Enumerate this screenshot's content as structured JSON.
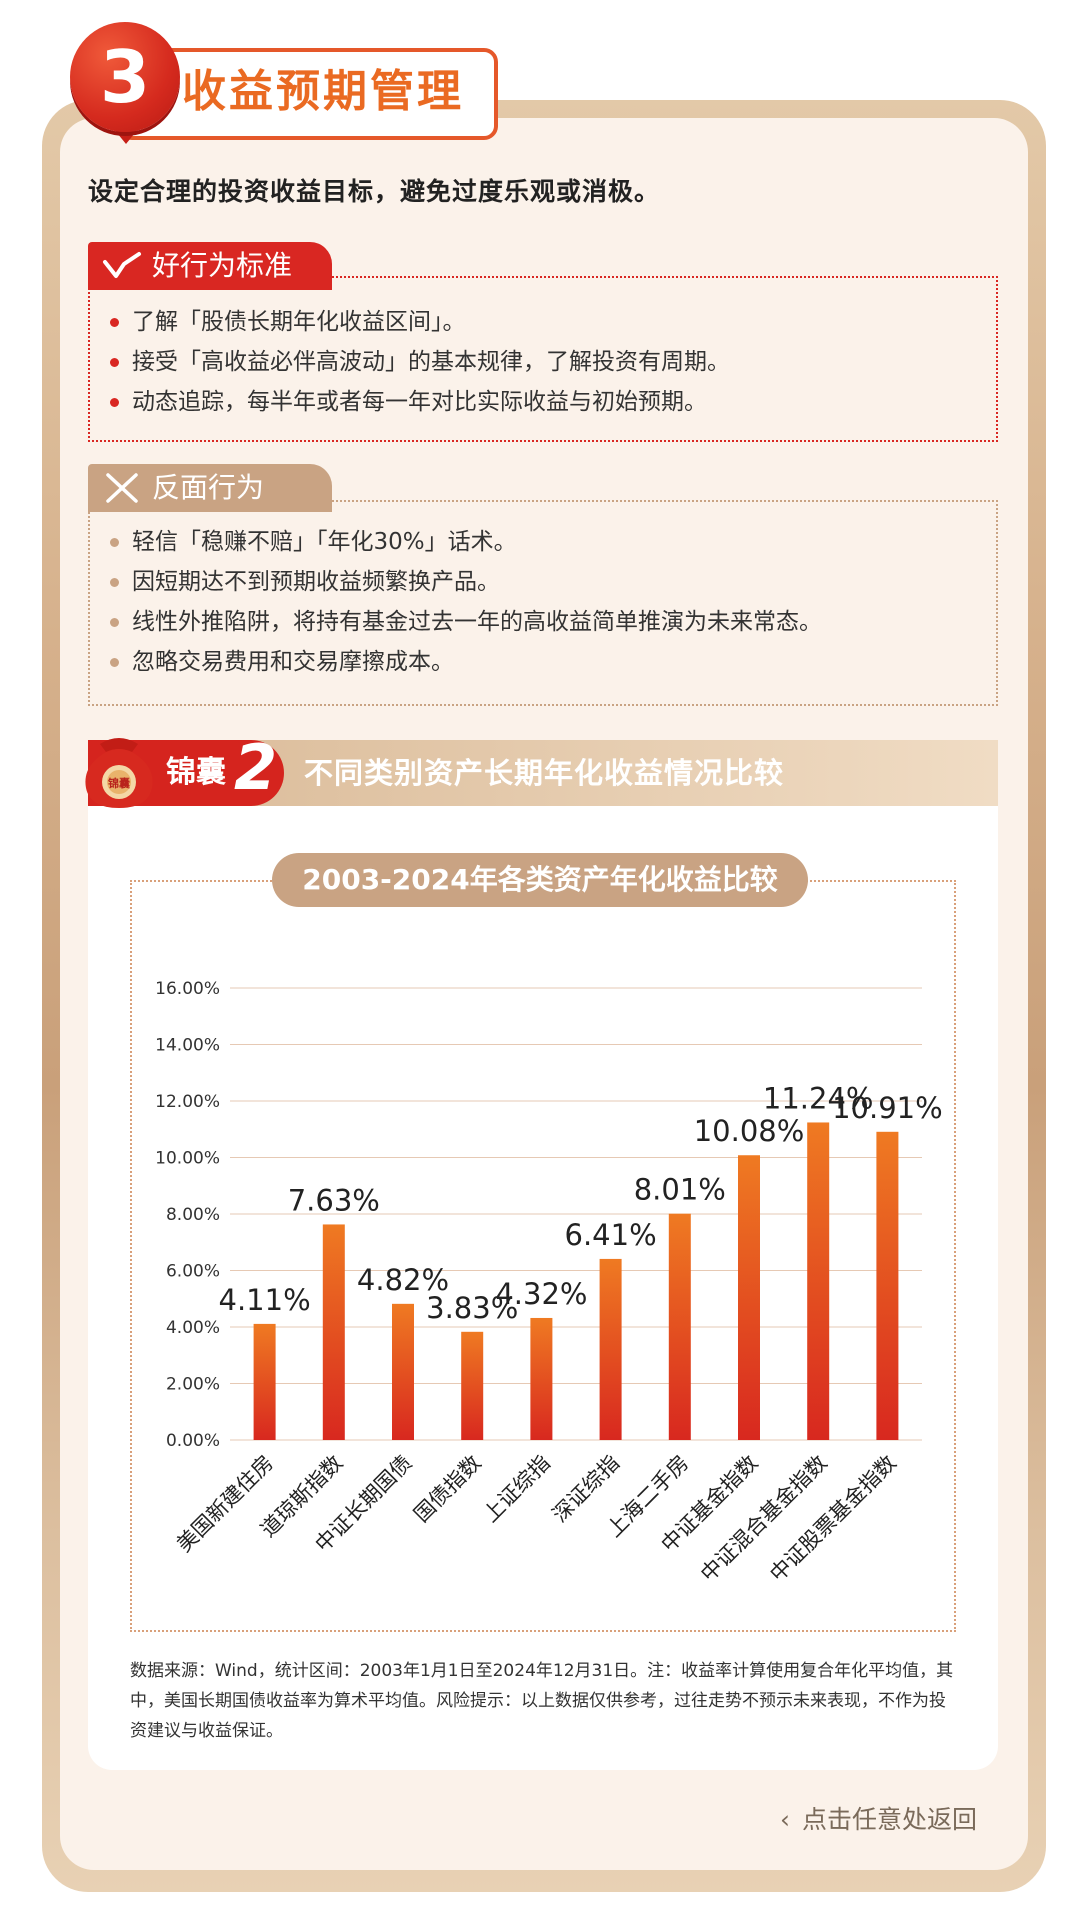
{
  "header": {
    "number": "3",
    "title": "收益预期管理"
  },
  "intro": "设定合理的投资收益目标，避免过度乐观或消极。",
  "good_behavior": {
    "label": "好行为标准",
    "icon": "check-icon",
    "items": [
      "了解「股债长期年化收益区间」。",
      "接受「高收益必伴高波动」的基本规律，了解投资有周期。",
      "动态追踪，每半年或者每一年对比实际收益与初始预期。"
    ]
  },
  "bad_behavior": {
    "label": "反面行为",
    "icon": "cross-icon",
    "items": [
      "轻信「稳赚不赔」「年化30%」话术。",
      "因短期达不到预期收益频繁换产品。",
      "线性外推陷阱，将持有基金过去一年的高收益简单推演为未来常态。",
      "忽略交易费用和交易摩擦成本。"
    ]
  },
  "tips": {
    "bag_text": "锦囊",
    "label": "锦囊",
    "number": "2",
    "title": "不同类别资产长期年化收益情况比较"
  },
  "chart_data": {
    "type": "bar",
    "title": "2003-2024年各类资产年化收益比较",
    "categories": [
      "美国新建住房",
      "道琼斯指数",
      "中证长期国债",
      "国债指数",
      "上证综指",
      "深证综指",
      "上海二手房",
      "中证基金指数",
      "中证混合基金指数",
      "中证股票基金指数"
    ],
    "values": [
      4.11,
      7.63,
      4.82,
      3.83,
      4.32,
      6.41,
      8.01,
      10.08,
      11.24,
      10.91
    ],
    "value_labels": [
      "4.11%",
      "7.63%",
      "4.82%",
      "3.83%",
      "4.32%",
      "6.41%",
      "8.01%",
      "10.08%",
      "11.24%",
      "10.91%"
    ],
    "y_ticks": [
      "0.00%",
      "2.00%",
      "4.00%",
      "6.00%",
      "8.00%",
      "10.00%",
      "12.00%",
      "14.00%",
      "16.00%"
    ],
    "ylim": [
      0,
      16
    ],
    "grid": true,
    "bar_color_top": "#ef7a22",
    "bar_color_bottom": "#d8281f"
  },
  "source_note": "数据来源：Wind，统计区间：2003年1月1日至2024年12月31日。注：收益率计算使用复合年化平均值，其中，美国长期国债收益率为算术平均值。风险提示：以上数据仅供参考，过往走势不预示未来表现，不作为投资建议与收益保证。",
  "back_link": "点击任意处返回",
  "colors": {
    "accent_red": "#d92722",
    "accent_orange": "#ea6a22",
    "beige": "#c9a383",
    "panel_bg": "#fbf2ea"
  }
}
